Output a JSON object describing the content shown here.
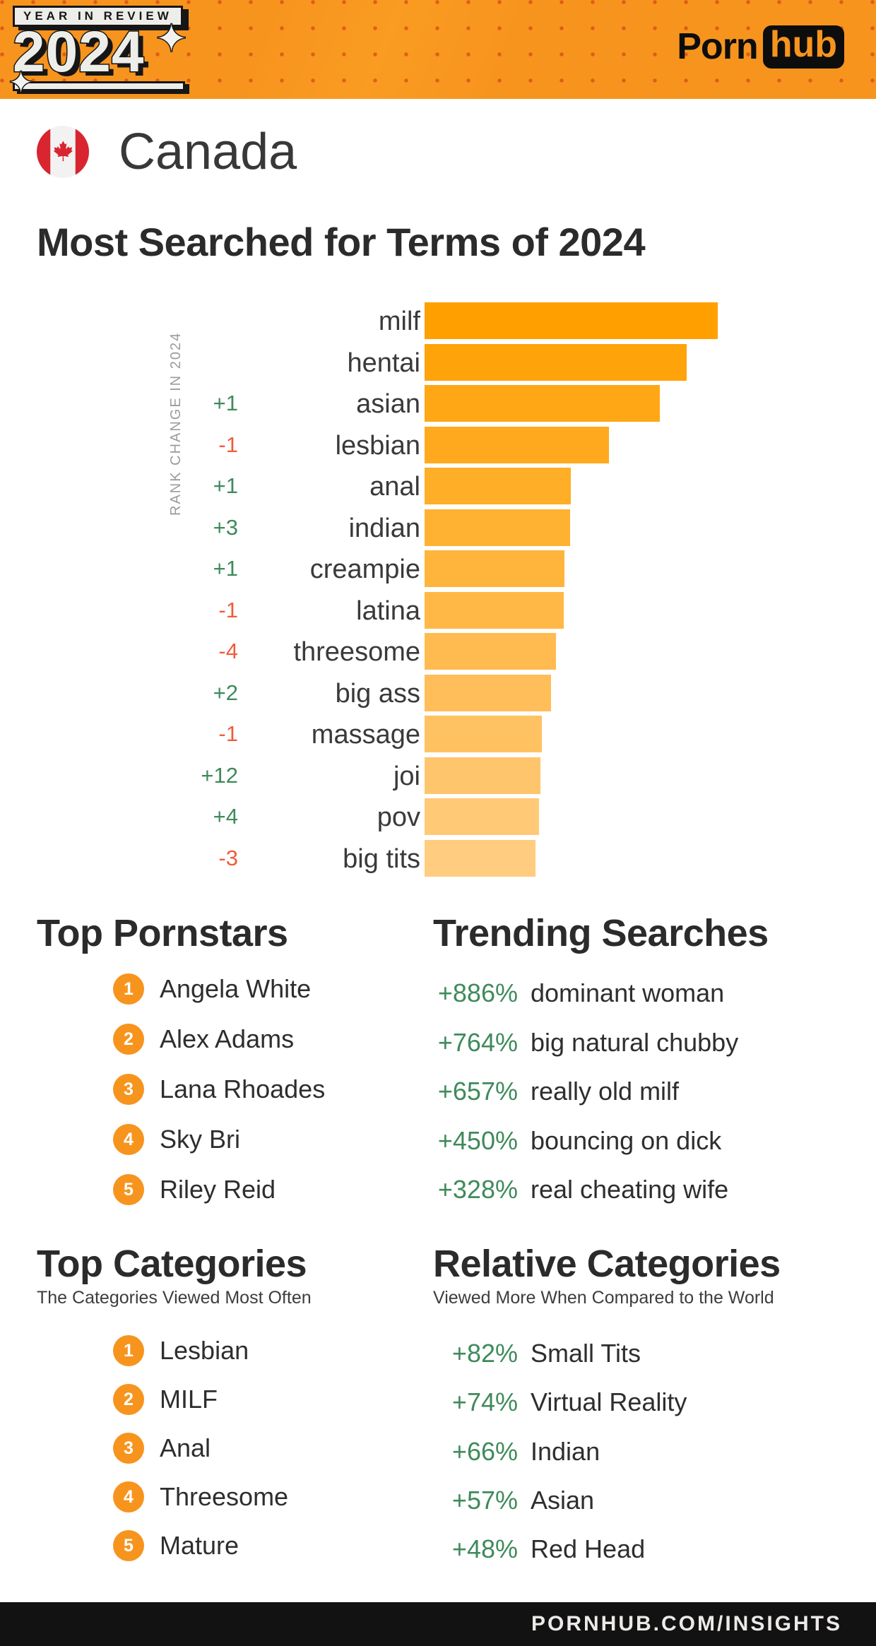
{
  "banner": {
    "year_in_review": "YEAR IN REVIEW",
    "year": "2024",
    "brand_porn": "Porn",
    "brand_hub": "hub",
    "bg_color": "#F7941E",
    "dot_color": "#D23C14"
  },
  "country": {
    "name": "Canada",
    "flag_red": "#D8252F",
    "flag_white": "#F2F2F2"
  },
  "chart_data": {
    "type": "bar",
    "orientation": "horizontal",
    "title": "Most Searched for Terms of 2024",
    "axis_label": "RANK CHANGE IN 2024",
    "categories": [
      "milf",
      "hentai",
      "asian",
      "lesbian",
      "anal",
      "indian",
      "creampie",
      "latina",
      "threesome",
      "big ass",
      "massage",
      "joi",
      "pov",
      "big tits"
    ],
    "values_pct_of_max": [
      100,
      89.4,
      80.2,
      62.9,
      49.9,
      49.6,
      47.7,
      47.5,
      44.8,
      43.1,
      40.0,
      39.5,
      39.0,
      37.8
    ],
    "rank_changes": [
      "",
      "",
      "+1",
      "-1",
      "+1",
      "+3",
      "+1",
      "-1",
      "-4",
      "+2",
      "-1",
      "+12",
      "+4",
      "-3"
    ],
    "bar_colors": [
      "#FFA000",
      "#FFA30A",
      "#FFA714",
      "#FFAA1E",
      "#FFAE27",
      "#FFB131",
      "#FFB43B",
      "#FFB845",
      "#FFBB4F",
      "#FFBE59",
      "#FFC262",
      "#FFC56C",
      "#FFC976",
      "#FFCC80"
    ],
    "bar_gradient_top": "#FFA000",
    "bar_gradient_bottom": "#FFCC80",
    "positive_color": "#3F8A5B",
    "negative_color": "#F05C3C",
    "value_axis": "relative search volume (no numeric axis shown)",
    "grid": false,
    "legend": false
  },
  "top_pornstars": {
    "title": "Top Pornstars",
    "items": [
      {
        "rank": "1",
        "name": "Angela White"
      },
      {
        "rank": "2",
        "name": "Alex Adams"
      },
      {
        "rank": "3",
        "name": "Lana Rhoades"
      },
      {
        "rank": "4",
        "name": "Sky Bri"
      },
      {
        "rank": "5",
        "name": "Riley Reid"
      }
    ]
  },
  "trending_searches": {
    "title": "Trending Searches",
    "items": [
      {
        "change": "+886%",
        "term": "dominant woman"
      },
      {
        "change": "+764%",
        "term": "big natural chubby"
      },
      {
        "change": "+657%",
        "term": "really old milf"
      },
      {
        "change": "+450%",
        "term": "bouncing on dick"
      },
      {
        "change": "+328%",
        "term": "real cheating wife"
      }
    ]
  },
  "top_categories": {
    "title": "Top Categories",
    "subtitle": "The Categories Viewed Most Often",
    "items": [
      {
        "rank": "1",
        "name": "Lesbian"
      },
      {
        "rank": "2",
        "name": "MILF"
      },
      {
        "rank": "3",
        "name": "Anal"
      },
      {
        "rank": "4",
        "name": "Threesome"
      },
      {
        "rank": "5",
        "name": "Mature"
      }
    ]
  },
  "relative_categories": {
    "title": "Relative Categories",
    "subtitle": "Viewed More When Compared to the World",
    "items": [
      {
        "change": "+82%",
        "term": "Small Tits"
      },
      {
        "change": "+74%",
        "term": "Virtual Reality"
      },
      {
        "change": "+66%",
        "term": "Indian"
      },
      {
        "change": "+57%",
        "term": "Asian"
      },
      {
        "change": "+48%",
        "term": "Red Head"
      }
    ]
  },
  "footer": {
    "url": "PORNHUB.COM/INSIGHTS"
  },
  "colors": {
    "accent": "#F7941E",
    "heading": "#2B2B2B",
    "body_text": "#2E2E2E",
    "muted": "#9B9B9B",
    "positive": "#3F8A5B",
    "negative": "#F05C3C",
    "footer_bg": "#121212"
  }
}
